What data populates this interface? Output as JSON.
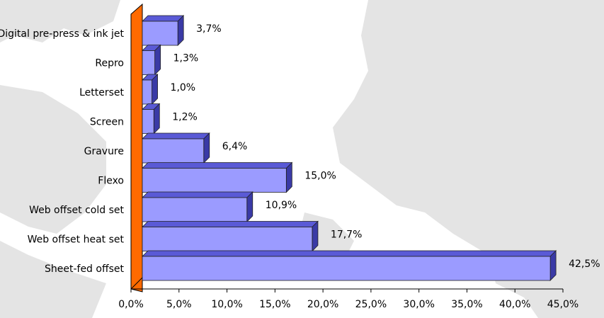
{
  "chart_data": {
    "type": "bar",
    "orientation": "horizontal",
    "categories": [
      "Digital pre-press & ink jet",
      "Repro",
      "Letterset",
      "Screen",
      "Gravure",
      "Flexo",
      "Web offset cold set",
      "Web offset heat set",
      "Sheet-fed offset"
    ],
    "values": [
      3.7,
      1.3,
      1.0,
      1.2,
      6.4,
      15.0,
      10.9,
      17.7,
      42.5
    ],
    "value_labels": [
      "3,7%",
      "1,3%",
      "1,0%",
      "1,2%",
      "6,4%",
      "15,0%",
      "10,9%",
      "17,7%",
      "42,5%"
    ],
    "x_ticks": [
      0,
      5,
      10,
      15,
      20,
      25,
      30,
      35,
      40,
      45
    ],
    "x_tick_labels": [
      "0,0%",
      "5,0%",
      "10,0%",
      "15,0%",
      "20,0%",
      "25,0%",
      "30,0%",
      "35,0%",
      "40,0%",
      "45,0%"
    ],
    "xlim": [
      0,
      45
    ],
    "grid": false,
    "legend": "none",
    "title": "",
    "xlabel": "",
    "ylabel": ""
  },
  "colors": {
    "bar_front": "#9b9bff",
    "bar_top": "#5a5ad6",
    "bar_side": "#3a3aa6",
    "wall": "#ff6a00",
    "map": "#e4e4e4"
  }
}
